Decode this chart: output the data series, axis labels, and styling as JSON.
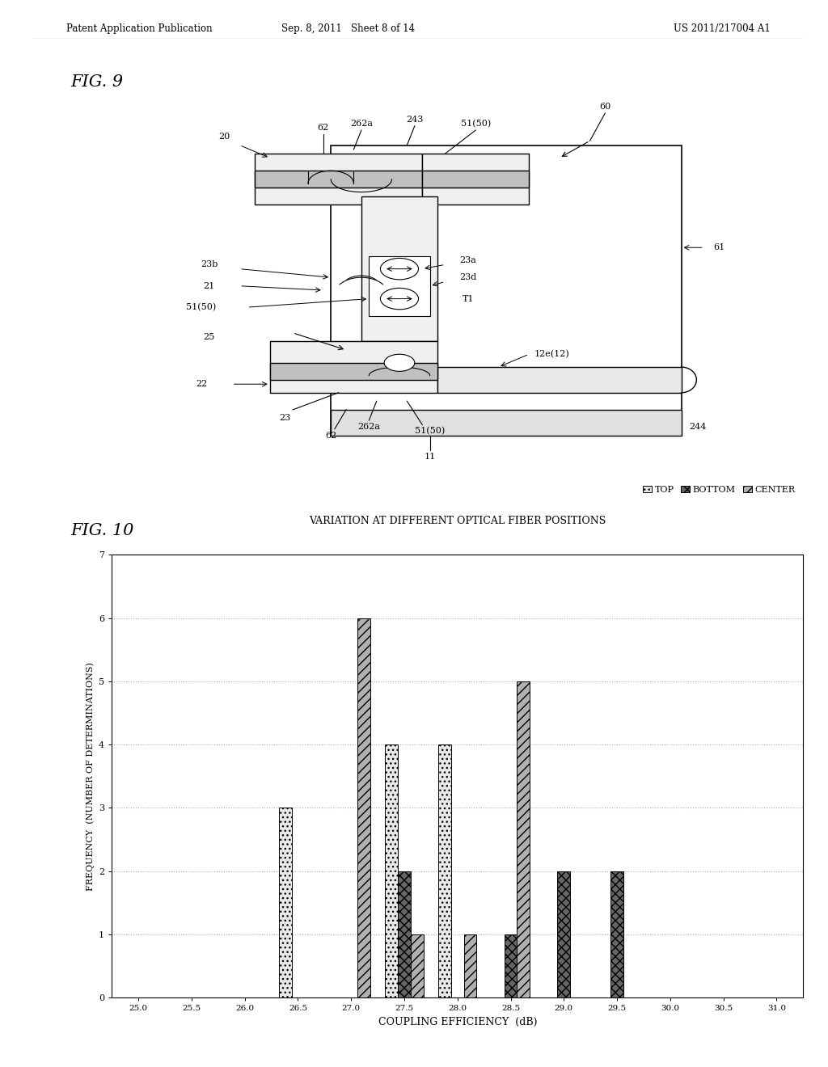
{
  "header_left": "Patent Application Publication",
  "header_mid": "Sep. 8, 2011   Sheet 8 of 14",
  "header_right": "US 2011/217004 A1",
  "fig9_label": "FIG. 9",
  "fig10_label": "FIG. 10",
  "chart_title": "VARIATION AT DIFFERENT OPTICAL FIBER POSITIONS",
  "xlabel": "COUPLING EFFICIENCY  (dB)",
  "ylabel": "FREQUENCY  (NUMBER OF DETERMINATIONS)",
  "legend_labels": [
    "TOP",
    "BOTTOM",
    "CENTER"
  ],
  "x_ticks": [
    25.0,
    25.5,
    26.0,
    26.5,
    27.0,
    27.5,
    28.0,
    28.5,
    29.0,
    29.5,
    30.0,
    30.5,
    31.0
  ],
  "ylim": [
    0,
    7
  ],
  "yticks": [
    0,
    1,
    2,
    3,
    4,
    5,
    6,
    7
  ],
  "bar_width": 0.12,
  "top_data": {
    "25.0": 0,
    "25.5": 0,
    "26.0": 0,
    "26.5": 3,
    "27.0": 0,
    "27.5": 4,
    "28.0": 4,
    "28.5": 0,
    "29.0": 0,
    "29.5": 0,
    "30.0": 0,
    "30.5": 0,
    "31.0": 0
  },
  "bottom_data": {
    "25.0": 0,
    "25.5": 0,
    "26.0": 0,
    "26.5": 0,
    "27.0": 0,
    "27.5": 2,
    "28.0": 0,
    "28.5": 1,
    "29.0": 2,
    "29.5": 2,
    "30.0": 0,
    "30.5": 0,
    "31.0": 0
  },
  "center_data": {
    "25.0": 0,
    "25.5": 0,
    "26.0": 0,
    "26.5": 0,
    "27.0": 6,
    "27.5": 1,
    "28.0": 1,
    "28.5": 5,
    "29.0": 0,
    "29.5": 0,
    "30.0": 0,
    "30.5": 0,
    "31.0": 0
  },
  "bg_color": "#ffffff",
  "grid_color": "#aaaaaa"
}
